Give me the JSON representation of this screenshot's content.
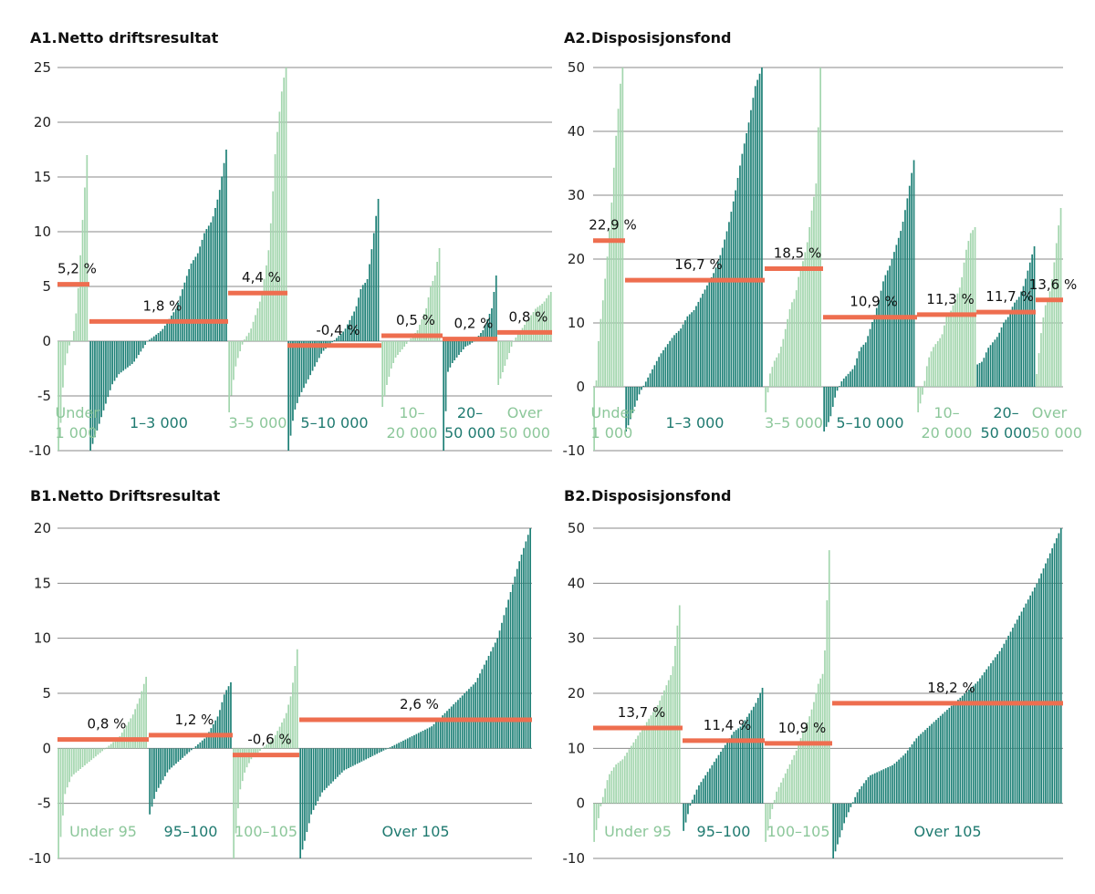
{
  "colors": {
    "light": "#a3d6ae",
    "dark": "#1f8177",
    "mean": "#ee6e4f",
    "grid": "#8a8a8a",
    "light_label": "#8cc79a",
    "dark_label": "#1f7a70"
  },
  "chart_data": [
    {
      "id": "A1",
      "type": "bar",
      "number": "A1.",
      "title": "Netto driftsresultat",
      "ylim": [
        -10,
        25
      ],
      "yticks": [
        -10,
        -5,
        0,
        5,
        10,
        15,
        20,
        25
      ],
      "grid": true,
      "groups": [
        {
          "label": "Under 1 000",
          "shade": "light",
          "mean": 5.2,
          "mean_label": "5,2 %",
          "sorted_values": [
            -10,
            -7,
            -3,
            -1.5,
            -0.5,
            0,
            1,
            3,
            6,
            10,
            13.5,
            17
          ]
        },
        {
          "label": "1–3 000",
          "shade": "dark",
          "mean": 1.8,
          "mean_label": "1,8 %",
          "sorted_values": [
            -10,
            -8,
            -6,
            -4,
            -3,
            -2.5,
            -2,
            -1,
            0,
            0.5,
            1,
            2,
            3,
            5,
            7,
            8,
            10,
            11,
            13.5,
            17.5
          ]
        },
        {
          "label": "3–5 000",
          "shade": "light",
          "mean": 4.4,
          "mean_label": "4,4 %",
          "sorted_values": [
            -6.5,
            -4,
            -2,
            -1,
            0,
            0.5,
            1,
            2,
            3,
            4,
            6,
            8,
            12,
            17.5,
            20.5,
            23.5,
            25
          ]
        },
        {
          "label": "5–10 000",
          "shade": "dark",
          "mean": -0.4,
          "mean_label": "-0,4 %",
          "sorted_values": [
            -10,
            -6.5,
            -5,
            -4,
            -3,
            -2,
            -1,
            -0.5,
            0,
            0.5,
            1,
            2,
            3,
            5,
            5.5,
            9,
            13
          ]
        },
        {
          "label": "10–20 000",
          "shade": "light",
          "mean": 0.5,
          "mean_label": "0,5 %",
          "sorted_values": [
            -6,
            -4,
            -2.5,
            -1.5,
            -1,
            -0.5,
            0,
            0.5,
            1,
            2,
            3,
            5,
            6,
            8.5
          ]
        },
        {
          "label": "20–50 000",
          "shade": "dark",
          "mean": 0.2,
          "mean_label": "0,2 %",
          "sorted_values": [
            -10,
            -2.8,
            -2,
            -1.5,
            -1,
            -0.5,
            -0.3,
            0,
            0.5,
            1,
            2,
            3,
            6
          ]
        },
        {
          "label": "Over 50 000",
          "shade": "light",
          "mean": 0.8,
          "mean_label": "0,8 %",
          "sorted_values": [
            -4,
            -2,
            0,
            1,
            2,
            3,
            3.5,
            4.5
          ]
        }
      ]
    },
    {
      "id": "A2",
      "type": "bar",
      "number": "A2.",
      "title": "Disposisjonsfond",
      "ylim": [
        -10,
        50
      ],
      "yticks": [
        -10,
        0,
        10,
        20,
        30,
        40,
        50
      ],
      "grid": true,
      "groups": [
        {
          "label": "Under 1 000",
          "shade": "light",
          "mean": 22.9,
          "mean_label": "22,9 %",
          "sorted_values": [
            -10,
            3,
            9,
            12,
            16,
            20,
            25,
            30,
            37,
            42,
            47,
            50
          ]
        },
        {
          "label": "1–3 000",
          "shade": "dark",
          "mean": 16.7,
          "mean_label": "16,7 %",
          "sorted_values": [
            -7,
            -4,
            -1,
            1,
            3,
            5,
            6.5,
            8,
            9,
            11,
            12,
            14,
            16,
            18,
            21,
            25,
            30,
            36,
            41,
            47,
            50
          ]
        },
        {
          "label": "3–5 000",
          "shade": "light",
          "mean": 18.5,
          "mean_label": "18,5 %",
          "sorted_values": [
            -4,
            2,
            4,
            5,
            7,
            10,
            13,
            14,
            18,
            20,
            23,
            28,
            32,
            50
          ]
        },
        {
          "label": "5–10 000",
          "shade": "dark",
          "mean": 10.9,
          "mean_label": "10,9 %",
          "sorted_values": [
            -7,
            -5,
            -1,
            1,
            2,
            3,
            6,
            7,
            10,
            13,
            17,
            19,
            22,
            25,
            30,
            35.5
          ]
        },
        {
          "label": "10–20 000",
          "shade": "light",
          "mean": 11.3,
          "mean_label": "11,3 %",
          "sorted_values": [
            -4,
            -1,
            4,
            6,
            7,
            8,
            11,
            12,
            14,
            16,
            21,
            24,
            25
          ]
        },
        {
          "label": "20–50 000",
          "shade": "dark",
          "mean": 11.7,
          "mean_label": "11,7 %",
          "sorted_values": [
            3.5,
            4,
            6,
            7,
            8,
            10,
            11,
            13,
            14,
            16,
            19,
            22
          ]
        },
        {
          "label": "Over 50 000",
          "shade": "light",
          "mean": 13.6,
          "mean_label": "13,6 %",
          "sorted_values": [
            2,
            8,
            12.5,
            14,
            17.5,
            23,
            28
          ]
        }
      ]
    },
    {
      "id": "B1",
      "type": "bar",
      "number": "B1.",
      "title": "Netto Driftsresultat",
      "ylim": [
        -10,
        20
      ],
      "yticks": [
        -10,
        -5,
        0,
        5,
        10,
        15,
        20
      ],
      "grid": true,
      "groups": [
        {
          "label": "Under 95",
          "shade": "light",
          "mean": 0.8,
          "mean_label": "0,8 %",
          "sorted_values": [
            -10,
            -4,
            -2.5,
            -2,
            -1.5,
            -1,
            -0.5,
            0,
            0.5,
            1,
            2,
            3,
            4.5,
            6.5
          ]
        },
        {
          "label": "95–100",
          "shade": "dark",
          "mean": 1.2,
          "mean_label": "1,2 %",
          "sorted_values": [
            -6,
            -4,
            -3,
            -2,
            -1.5,
            -1,
            -0.5,
            0,
            0.5,
            1,
            2,
            3,
            5,
            6
          ]
        },
        {
          "label": "100–105",
          "shade": "light",
          "mean": -0.6,
          "mean_label": "-0,6 %",
          "sorted_values": [
            -10,
            -4,
            -2,
            -1,
            -0.5,
            0,
            0.5,
            1,
            2,
            3,
            5,
            9
          ]
        },
        {
          "label": "Over 105",
          "shade": "dark",
          "mean": 2.6,
          "mean_label": "2,6 %",
          "sorted_values": [
            -10,
            -6,
            -4,
            -3,
            -2,
            -1.5,
            -1,
            -0.5,
            0,
            0.5,
            1,
            1.5,
            2,
            3,
            4,
            5,
            6,
            8,
            10,
            13.5,
            17,
            20
          ]
        }
      ]
    },
    {
      "id": "B2",
      "type": "bar",
      "number": "B2.",
      "title": "Disposisjonsfond",
      "ylim": [
        -10,
        50
      ],
      "yticks": [
        -10,
        0,
        10,
        20,
        30,
        40,
        50
      ],
      "grid": true,
      "groups": [
        {
          "label": "Under 95",
          "shade": "light",
          "mean": 13.7,
          "mean_label": "13,7 %",
          "sorted_values": [
            -7,
            0,
            5,
            7,
            8,
            10,
            12,
            14,
            16,
            18,
            21,
            24,
            36
          ]
        },
        {
          "label": "95–100",
          "shade": "dark",
          "mean": 11.4,
          "mean_label": "11,4 %",
          "sorted_values": [
            -5,
            0,
            3,
            5,
            7,
            9,
            11,
            13,
            14,
            16,
            18,
            21
          ]
        },
        {
          "label": "100–105",
          "shade": "light",
          "mean": 10.9,
          "mean_label": "10,9 %",
          "sorted_values": [
            -7,
            -2,
            2,
            4,
            6,
            8,
            10,
            13,
            15,
            18,
            22,
            24,
            46
          ]
        },
        {
          "label": "Over 105",
          "shade": "dark",
          "mean": 18.2,
          "mean_label": "18,2 %",
          "sorted_values": [
            -10,
            -3,
            2,
            5,
            6,
            7,
            9,
            12,
            14,
            16,
            18,
            20,
            22,
            25,
            28,
            32,
            36,
            40,
            45,
            50
          ]
        }
      ]
    }
  ]
}
